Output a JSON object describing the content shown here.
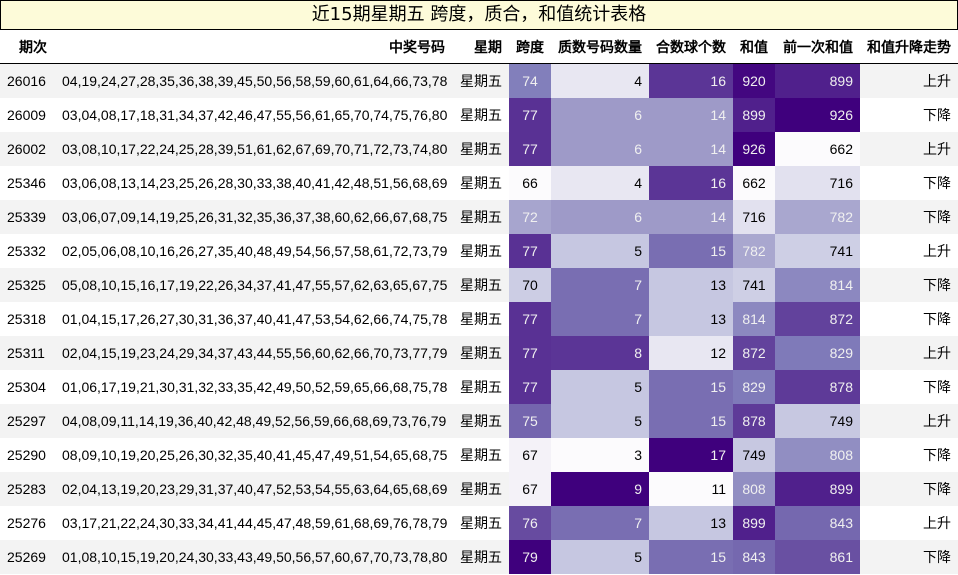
{
  "title": "近15期星期五 跨度，质合，和值统计表格",
  "columns": [
    "期次",
    "中奖号码",
    "星期",
    "跨度",
    "质数号码数量",
    "合数球个数",
    "和值",
    "前一次和值",
    "和值升降走势"
  ],
  "rows": [
    {
      "issue": "26016",
      "numbers": "04,19,24,27,28,35,36,38,39,45,50,56,58,59,60,61,64,66,73,78",
      "weekday": "星期五",
      "span": 74,
      "primes": 4,
      "composites": 16,
      "sum": 920,
      "prev_sum": 899,
      "trend": "上升"
    },
    {
      "issue": "26009",
      "numbers": "03,04,08,17,18,31,34,37,42,46,47,55,56,61,65,70,74,75,76,80",
      "weekday": "星期五",
      "span": 77,
      "primes": 6,
      "composites": 14,
      "sum": 899,
      "prev_sum": 926,
      "trend": "下降"
    },
    {
      "issue": "26002",
      "numbers": "03,08,10,17,22,24,25,28,39,51,61,62,67,69,70,71,72,73,74,80",
      "weekday": "星期五",
      "span": 77,
      "primes": 6,
      "composites": 14,
      "sum": 926,
      "prev_sum": 662,
      "trend": "上升"
    },
    {
      "issue": "25346",
      "numbers": "03,06,08,13,14,23,25,26,28,30,33,38,40,41,42,48,51,56,68,69",
      "weekday": "星期五",
      "span": 66,
      "primes": 4,
      "composites": 16,
      "sum": 662,
      "prev_sum": 716,
      "trend": "下降"
    },
    {
      "issue": "25339",
      "numbers": "03,06,07,09,14,19,25,26,31,32,35,36,37,38,60,62,66,67,68,75",
      "weekday": "星期五",
      "span": 72,
      "primes": 6,
      "composites": 14,
      "sum": 716,
      "prev_sum": 782,
      "trend": "下降"
    },
    {
      "issue": "25332",
      "numbers": "02,05,06,08,10,16,26,27,35,40,48,49,54,56,57,58,61,72,73,79",
      "weekday": "星期五",
      "span": 77,
      "primes": 5,
      "composites": 15,
      "sum": 782,
      "prev_sum": 741,
      "trend": "上升"
    },
    {
      "issue": "25325",
      "numbers": "05,08,10,15,16,17,19,22,26,34,37,41,47,55,57,62,63,65,67,75",
      "weekday": "星期五",
      "span": 70,
      "primes": 7,
      "composites": 13,
      "sum": 741,
      "prev_sum": 814,
      "trend": "下降"
    },
    {
      "issue": "25318",
      "numbers": "01,04,15,17,26,27,30,31,36,37,40,41,47,53,54,62,66,74,75,78",
      "weekday": "星期五",
      "span": 77,
      "primes": 7,
      "composites": 13,
      "sum": 814,
      "prev_sum": 872,
      "trend": "下降"
    },
    {
      "issue": "25311",
      "numbers": "02,04,15,19,23,24,29,34,37,43,44,55,56,60,62,66,70,73,77,79",
      "weekday": "星期五",
      "span": 77,
      "primes": 8,
      "composites": 12,
      "sum": 872,
      "prev_sum": 829,
      "trend": "上升"
    },
    {
      "issue": "25304",
      "numbers": "01,06,17,19,21,30,31,32,33,35,42,49,50,52,59,65,66,68,75,78",
      "weekday": "星期五",
      "span": 77,
      "primes": 5,
      "composites": 15,
      "sum": 829,
      "prev_sum": 878,
      "trend": "下降"
    },
    {
      "issue": "25297",
      "numbers": "04,08,09,11,14,19,36,40,42,48,49,52,56,59,66,68,69,73,76,79",
      "weekday": "星期五",
      "span": 75,
      "primes": 5,
      "composites": 15,
      "sum": 878,
      "prev_sum": 749,
      "trend": "上升"
    },
    {
      "issue": "25290",
      "numbers": "08,09,10,19,20,25,26,30,32,35,40,41,45,47,49,51,54,65,68,75",
      "weekday": "星期五",
      "span": 67,
      "primes": 3,
      "composites": 17,
      "sum": 749,
      "prev_sum": 808,
      "trend": "下降"
    },
    {
      "issue": "25283",
      "numbers": "02,04,13,19,20,23,29,31,37,40,47,52,53,54,55,63,64,65,68,69",
      "weekday": "星期五",
      "span": 67,
      "primes": 9,
      "composites": 11,
      "sum": 808,
      "prev_sum": 899,
      "trend": "下降"
    },
    {
      "issue": "25276",
      "numbers": "03,17,21,22,24,30,33,34,41,44,45,47,48,59,61,68,69,76,78,79",
      "weekday": "星期五",
      "span": 76,
      "primes": 7,
      "composites": 13,
      "sum": 899,
      "prev_sum": 843,
      "trend": "上升"
    },
    {
      "issue": "25269",
      "numbers": "01,08,10,15,19,20,24,30,33,43,49,50,56,57,60,67,70,73,78,80",
      "weekday": "星期五",
      "span": 79,
      "primes": 5,
      "composites": 15,
      "sum": 843,
      "prev_sum": 861,
      "trend": "下降"
    }
  ],
  "heat_columns": [
    "span",
    "primes",
    "composites",
    "sum",
    "prev_sum"
  ],
  "colormap": {
    "name": "Purples",
    "stops": [
      "#fcfbfd",
      "#efedf5",
      "#dadaeb",
      "#bcbddc",
      "#9e9ac8",
      "#807dba",
      "#6a51a3",
      "#54278f",
      "#3f007d"
    ]
  },
  "colors": {
    "title_bg": "#fdfbd9",
    "row_odd_bg": "#f3f3f3",
    "row_even_bg": "#ffffff",
    "header_rule": "#000000"
  }
}
